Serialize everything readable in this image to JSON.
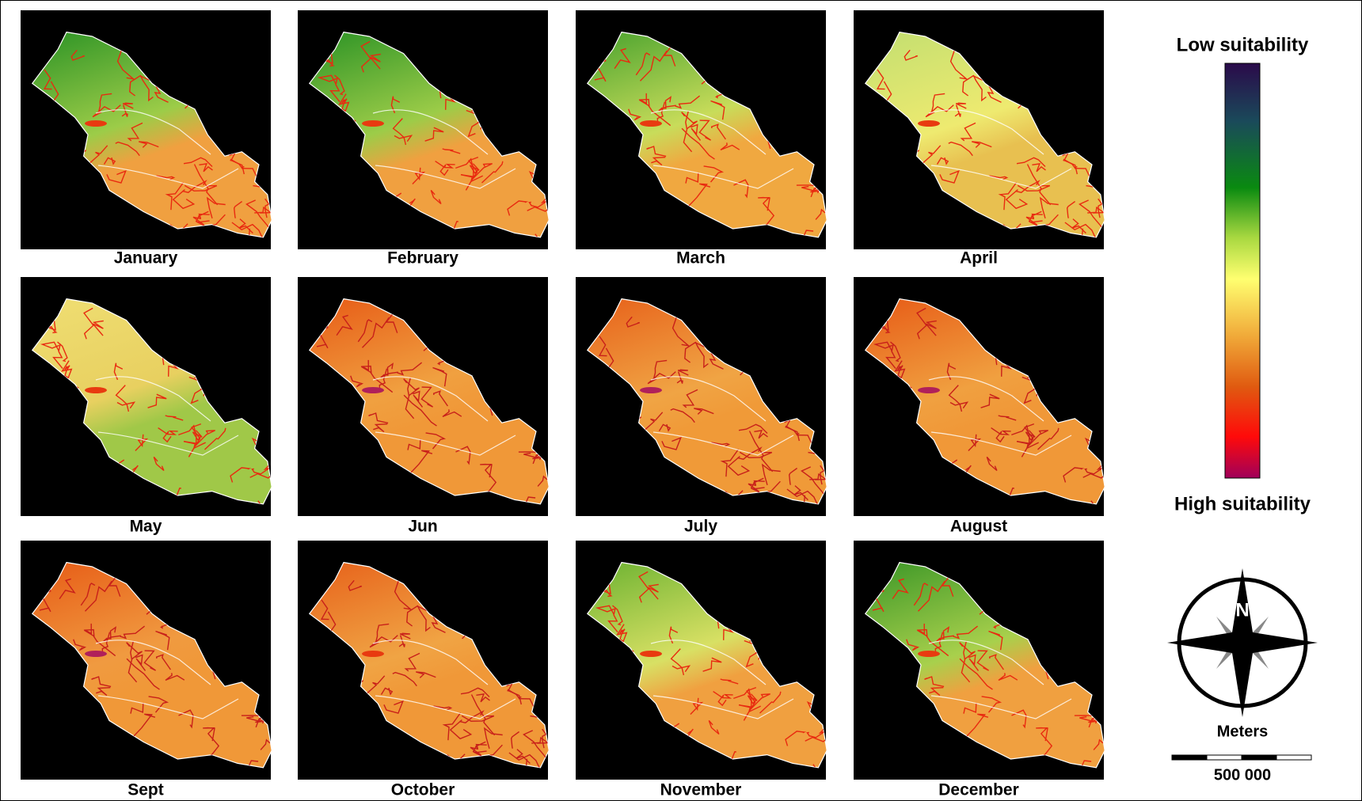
{
  "panels": [
    {
      "label": "January"
    },
    {
      "label": "February"
    },
    {
      "label": "March"
    },
    {
      "label": "April"
    },
    {
      "label": "May"
    },
    {
      "label": "Jun"
    },
    {
      "label": "July"
    },
    {
      "label": "August"
    },
    {
      "label": "Sept"
    },
    {
      "label": "October"
    },
    {
      "label": "November"
    },
    {
      "label": "December"
    }
  ],
  "legend": {
    "top_label": "Low suitability",
    "bottom_label": "High suitability"
  },
  "compass": {
    "label": "N"
  },
  "scale_bar": {
    "unit": "Meters",
    "label": "500 000"
  }
}
